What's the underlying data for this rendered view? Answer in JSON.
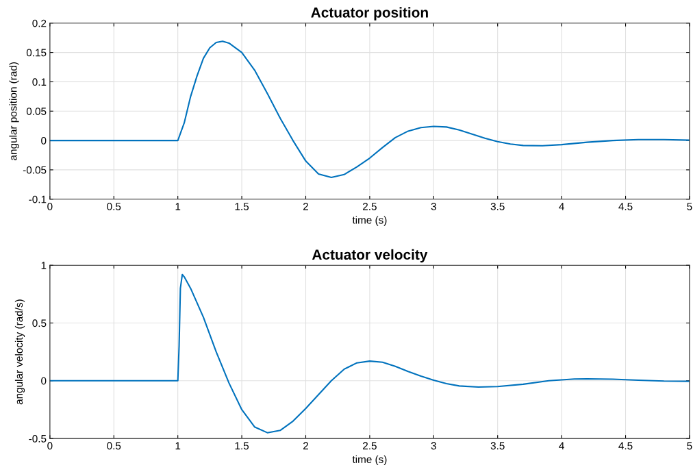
{
  "chart_data": [
    {
      "type": "line",
      "title": "Actuator position",
      "xlabel": "time (s)",
      "ylabel": "angular position (rad)",
      "xlim": [
        0,
        5
      ],
      "xticks": [
        0,
        0.5,
        1,
        1.5,
        2,
        2.5,
        3,
        3.5,
        4,
        4.5,
        5
      ],
      "ylim": [
        -0.1,
        0.2
      ],
      "yticks": [
        -0.1,
        -0.05,
        0,
        0.05,
        0.1,
        0.15,
        0.2
      ],
      "grid": true,
      "series": [
        {
          "color": "#0072bd",
          "x": [
            0,
            1.0,
            1.05,
            1.1,
            1.15,
            1.2,
            1.25,
            1.3,
            1.35,
            1.4,
            1.5,
            1.6,
            1.7,
            1.8,
            1.9,
            2.0,
            2.1,
            2.2,
            2.3,
            2.4,
            2.5,
            2.6,
            2.7,
            2.8,
            2.9,
            3.0,
            3.1,
            3.2,
            3.3,
            3.4,
            3.5,
            3.6,
            3.7,
            3.85,
            4.0,
            4.2,
            4.4,
            4.6,
            4.8,
            5.0
          ],
          "values": [
            0,
            0,
            0.03,
            0.075,
            0.11,
            0.14,
            0.158,
            0.167,
            0.169,
            0.166,
            0.15,
            0.12,
            0.08,
            0.038,
            0.0,
            -0.035,
            -0.057,
            -0.063,
            -0.058,
            -0.045,
            -0.03,
            -0.012,
            0.005,
            0.016,
            0.022,
            0.024,
            0.023,
            0.018,
            0.011,
            0.004,
            -0.002,
            -0.006,
            -0.0085,
            -0.009,
            -0.007,
            -0.003,
            0.0,
            0.0015,
            0.0015,
            0.0005
          ]
        }
      ]
    },
    {
      "type": "line",
      "title": "Actuator velocity",
      "xlabel": "time (s)",
      "ylabel": "angular velocity (rad/s)",
      "xlim": [
        0,
        5
      ],
      "xticks": [
        0,
        0.5,
        1,
        1.5,
        2,
        2.5,
        3,
        3.5,
        4,
        4.5,
        5
      ],
      "ylim": [
        -0.5,
        1
      ],
      "yticks": [
        -0.5,
        0,
        0.5,
        1
      ],
      "grid": true,
      "series": [
        {
          "color": "#0072bd",
          "x": [
            0,
            1.0,
            1.01,
            1.02,
            1.035,
            1.05,
            1.1,
            1.2,
            1.3,
            1.4,
            1.5,
            1.6,
            1.7,
            1.8,
            1.9,
            2.0,
            2.1,
            2.2,
            2.3,
            2.4,
            2.5,
            2.6,
            2.7,
            2.8,
            2.9,
            3.0,
            3.1,
            3.2,
            3.35,
            3.5,
            3.7,
            3.9,
            4.1,
            4.2,
            4.4,
            4.6,
            4.8,
            5.0
          ],
          "values": [
            0,
            0,
            0.3,
            0.8,
            0.92,
            0.9,
            0.8,
            0.55,
            0.25,
            -0.02,
            -0.25,
            -0.4,
            -0.45,
            -0.43,
            -0.35,
            -0.24,
            -0.12,
            0.0,
            0.1,
            0.155,
            0.17,
            0.16,
            0.125,
            0.08,
            0.04,
            0.005,
            -0.025,
            -0.045,
            -0.055,
            -0.05,
            -0.03,
            0.0,
            0.015,
            0.017,
            0.014,
            0.005,
            -0.003,
            -0.005
          ]
        }
      ]
    }
  ]
}
